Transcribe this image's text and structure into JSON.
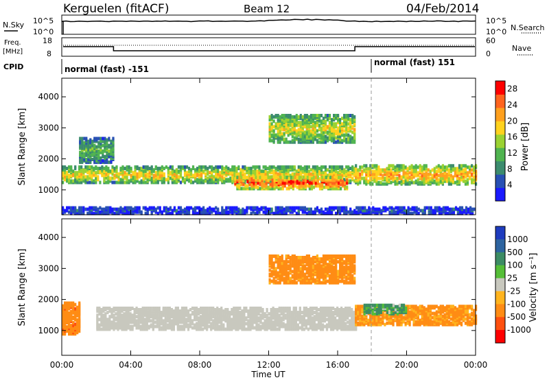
{
  "header": {
    "title": "Kerguelen (fitACF)",
    "beam": "Beam 12",
    "date": "04/Feb/2014"
  },
  "nsky_panel": {
    "left_label": "N.Sky",
    "left_ticks": [
      "10^5",
      "10^0"
    ],
    "right_ticks": [
      "10^5",
      "10^0"
    ],
    "right_label": "N.Search"
  },
  "freq_panel": {
    "left_label_line1": "Freq.",
    "left_label_line2": "[MHz]",
    "left_ticks": [
      "18",
      "8"
    ],
    "right_ticks": [
      "60",
      "0"
    ],
    "right_label": "Nave"
  },
  "cpid_panel": {
    "label": "CPID",
    "segments": [
      {
        "text": "normal (fast) -151",
        "start_hour": 0
      },
      {
        "text": "normal (fast) 151",
        "start_hour": 18
      }
    ]
  },
  "colors": {
    "power_scale": [
      "#1a1aff",
      "#2850b4",
      "#3c8c6e",
      "#50b450",
      "#9bd232",
      "#ffd21e",
      "#ffa01e",
      "#ff641e",
      "#ff0000"
    ],
    "velocity_scale": [
      "#1e3cbe",
      "#2d64a0",
      "#3c8c64",
      "#55be37",
      "#c8c8be",
      "#ffb41e",
      "#ff8c14",
      "#ff500f",
      "#ff0000"
    ]
  },
  "chart_data": [
    {
      "type": "heatmap",
      "panel": "power",
      "ylabel": "Slant Range [km]",
      "yticks": [
        "1000",
        "2000",
        "3000",
        "4000"
      ],
      "ylim": [
        200,
        4600
      ],
      "xlim": [
        0,
        24
      ],
      "colorbar_label": "Power [dB]",
      "colorbar_ticks": [
        "4",
        "8",
        "12",
        "16",
        "20",
        "24",
        "28"
      ],
      "colorbar_range": [
        0,
        30
      ],
      "echo_regions": [
        {
          "name": "ground-scatter band",
          "t_start": 0.0,
          "t_end": 17.0,
          "r_center": 1500,
          "r_half": 250,
          "level": 0.65
        },
        {
          "name": "intense band",
          "t_start": 10.0,
          "t_end": 16.5,
          "r_center": 1250,
          "r_half": 200,
          "level": 0.92
        },
        {
          "name": "upper patch",
          "t_start": 12.0,
          "t_end": 17.0,
          "r_center": 3000,
          "r_half": 450,
          "level": 0.6
        },
        {
          "name": "evening band",
          "t_start": 17.0,
          "t_end": 24.0,
          "r_center": 1500,
          "r_half": 300,
          "level": 0.75
        },
        {
          "name": "near range",
          "t_start": 0.0,
          "t_end": 24.0,
          "r_center": 350,
          "r_half": 100,
          "level": 0.15
        },
        {
          "name": "early patch",
          "t_start": 1.0,
          "t_end": 3.0,
          "r_center": 2300,
          "r_half": 400,
          "level": 0.4
        }
      ]
    },
    {
      "type": "heatmap",
      "panel": "velocity",
      "ylabel": "Slant Range [km]",
      "yticks": [
        "1000",
        "2000",
        "3000",
        "4000"
      ],
      "ylim": [
        200,
        4600
      ],
      "xlim": [
        0,
        24
      ],
      "xlabel": "Time UT",
      "xticks": [
        "00:00",
        "04:00",
        "08:00",
        "12:00",
        "16:00",
        "20:00",
        "00:00"
      ],
      "colorbar_label": "Velocity [m s⁻¹]",
      "colorbar_ticks": [
        "1000",
        "500",
        "100",
        "25",
        "-25",
        "-100",
        "-500",
        "-1000"
      ],
      "echo_regions": [
        {
          "name": "ground scatter",
          "t_start": 2.0,
          "t_end": 17.0,
          "r_center": 1400,
          "r_half": 350,
          "velocity": 0
        },
        {
          "name": "early flow",
          "t_start": 0.0,
          "t_end": 1.0,
          "r_center": 1400,
          "r_half": 500,
          "velocity": -400
        },
        {
          "name": "upper patch",
          "t_start": 12.0,
          "t_end": 17.0,
          "r_center": 3000,
          "r_half": 450,
          "velocity": -200
        },
        {
          "name": "evening flow",
          "t_start": 17.0,
          "t_end": 24.0,
          "r_center": 1500,
          "r_half": 300,
          "velocity": -150
        },
        {
          "name": "evening green",
          "t_start": 17.5,
          "t_end": 20.0,
          "r_center": 1700,
          "r_half": 150,
          "velocity": 120
        }
      ]
    }
  ]
}
